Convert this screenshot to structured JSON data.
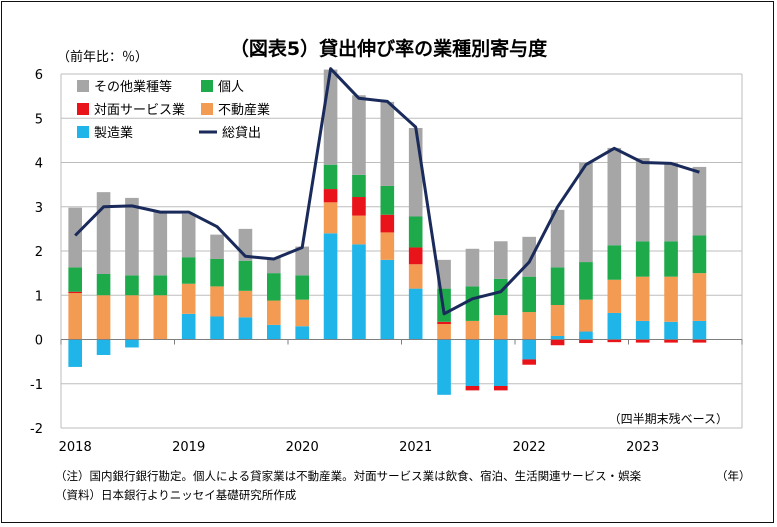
{
  "chart_data": {
    "type": "bar",
    "stacked": true,
    "title": "（図表5）貸出伸び率の業種別寄与度",
    "ylabel": "（前年比：％）",
    "xlabel": "（年）",
    "annotation": "（四半期末残ベース）",
    "ylim": [
      -2,
      6
    ],
    "yticks": [
      "-2",
      "-1",
      "0",
      "1",
      "2",
      "3",
      "4",
      "5",
      "6"
    ],
    "year_labels": [
      "2018",
      "2019",
      "2020",
      "2021",
      "2022",
      "2023"
    ],
    "grid": true,
    "legend_position": "top-left",
    "categories": [
      "2018Q1",
      "2018Q2",
      "2018Q3",
      "2018Q4",
      "2019Q1",
      "2019Q2",
      "2019Q3",
      "2019Q4",
      "2020Q1",
      "2020Q2",
      "2020Q3",
      "2020Q4",
      "2021Q1",
      "2021Q2",
      "2021Q3",
      "2021Q4",
      "2022Q1",
      "2022Q2",
      "2022Q3",
      "2022Q4",
      "2023Q1",
      "2023Q2",
      "2023Q3",
      "2023Q4"
    ],
    "series": [
      {
        "name": "製造業",
        "color": "#1fb5e8",
        "values": [
          -0.62,
          -0.35,
          -0.18,
          0.0,
          0.58,
          0.52,
          0.5,
          0.33,
          0.3,
          2.4,
          2.15,
          1.8,
          1.15,
          -1.25,
          -1.05,
          -1.05,
          -0.45,
          0.08,
          0.18,
          0.6,
          0.42,
          0.4,
          0.42,
          0.0
        ]
      },
      {
        "name": "不動産業",
        "color": "#f39b52",
        "values": [
          1.05,
          1.0,
          1.0,
          1.0,
          0.68,
          0.68,
          0.6,
          0.55,
          0.6,
          0.7,
          0.65,
          0.62,
          0.55,
          0.35,
          0.42,
          0.55,
          0.62,
          0.7,
          0.72,
          0.75,
          1.0,
          1.02,
          1.08,
          0.0
        ]
      },
      {
        "name": "対面サービス業",
        "color": "#e8141a",
        "values": [
          0.03,
          0.0,
          0.0,
          0.0,
          0.0,
          0.0,
          0.0,
          0.0,
          0.0,
          0.3,
          0.42,
          0.4,
          0.38,
          0.05,
          -0.1,
          -0.1,
          -0.12,
          -0.13,
          -0.08,
          -0.06,
          -0.07,
          -0.07,
          -0.07,
          0.0
        ]
      },
      {
        "name": "個人",
        "color": "#1ea94b",
        "values": [
          0.55,
          0.48,
          0.45,
          0.45,
          0.6,
          0.62,
          0.68,
          0.62,
          0.55,
          0.55,
          0.5,
          0.65,
          0.7,
          0.75,
          0.78,
          0.82,
          0.8,
          0.85,
          0.85,
          0.78,
          0.8,
          0.8,
          0.85,
          0.0
        ]
      },
      {
        "name": "その他業種等",
        "color": "#a6a6a6",
        "values": [
          1.35,
          1.85,
          1.75,
          1.45,
          0.98,
          0.55,
          0.72,
          0.35,
          0.65,
          2.15,
          1.8,
          1.9,
          2.0,
          0.65,
          0.85,
          0.85,
          0.9,
          1.3,
          2.25,
          2.2,
          1.88,
          1.78,
          1.55,
          0.0
        ]
      }
    ],
    "line_series": {
      "name": "総貸出",
      "color": "#1a2a5a",
      "values": [
        2.35,
        3.0,
        3.02,
        2.88,
        2.88,
        2.55,
        1.88,
        1.82,
        2.08,
        6.12,
        5.45,
        5.38,
        4.8,
        0.58,
        0.92,
        1.08,
        1.75,
        3.0,
        3.95,
        4.32,
        4.0,
        3.98,
        3.78,
        null
      ]
    }
  },
  "footnotes": {
    "note1": "（注）国内銀行銀行勘定。個人による貸家業は不動産業。対面サービス業は飲食、宿泊、生活関連サービス・娯楽",
    "note2": "（資料）日本銀行よりニッセイ基礎研究所作成"
  }
}
